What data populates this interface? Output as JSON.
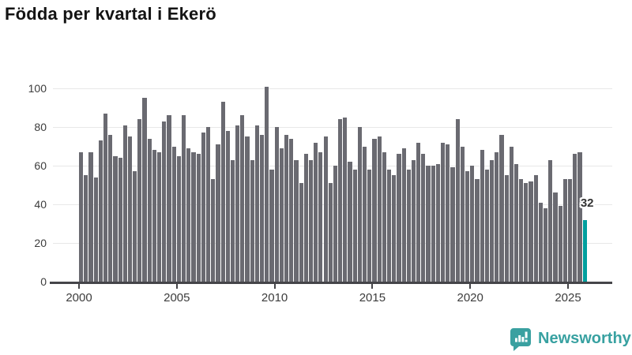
{
  "title": "Födda per kvartal i Ekerö",
  "colors": {
    "bar": "#6a6a71",
    "highlight": "#009f9e",
    "grid": "#e8e8e8",
    "axis_line": "#454549",
    "axis_text": "#3c3c3c",
    "title_text": "#141414",
    "logo_teal": "#3aa0a0",
    "label_text": "#333333"
  },
  "chart_data": {
    "type": "bar",
    "title": "Födda per kvartal i Ekerö",
    "frequency": "quarterly",
    "x_start": "2000-Q1",
    "x_end": "2025-Q4",
    "values": [
      67,
      55,
      67,
      54,
      73,
      87,
      76,
      65,
      64,
      81,
      75,
      57,
      84,
      95,
      74,
      68,
      67,
      83,
      86,
      70,
      65,
      86,
      69,
      67,
      66,
      77,
      80,
      53,
      71,
      93,
      78,
      63,
      81,
      86,
      75,
      63,
      81,
      76,
      101,
      58,
      80,
      69,
      76,
      74,
      63,
      51,
      66,
      63,
      72,
      67,
      75,
      51,
      60,
      84,
      85,
      62,
      58,
      80,
      70,
      58,
      74,
      75,
      67,
      58,
      55,
      66,
      69,
      58,
      63,
      72,
      66,
      60,
      60,
      61,
      72,
      71,
      59,
      84,
      70,
      57,
      60,
      53,
      68,
      58,
      63,
      67,
      76,
      55,
      70,
      61,
      53,
      51,
      52,
      55,
      41,
      38,
      63,
      46,
      39,
      53,
      53,
      66,
      67,
      32
    ],
    "highlight": {
      "index": 103,
      "value": 32,
      "label": "32"
    },
    "ylim": [
      0,
      100
    ],
    "yticks": [
      0,
      20,
      40,
      60,
      80,
      100
    ],
    "ytick_labels": [
      "0",
      "20",
      "40",
      "60",
      "80",
      "100"
    ],
    "xticks": [
      2000,
      2005,
      2010,
      2015,
      2020,
      2025
    ],
    "xtick_labels": [
      "2000",
      "2005",
      "2010",
      "2015",
      "2020",
      "2025"
    ],
    "grid": true,
    "legend": false
  },
  "annotation": {
    "last_bar_label": "32"
  },
  "logo": {
    "text": "Newsworthy",
    "icon": "newsworthy-speech-bubble-barchart-icon"
  }
}
